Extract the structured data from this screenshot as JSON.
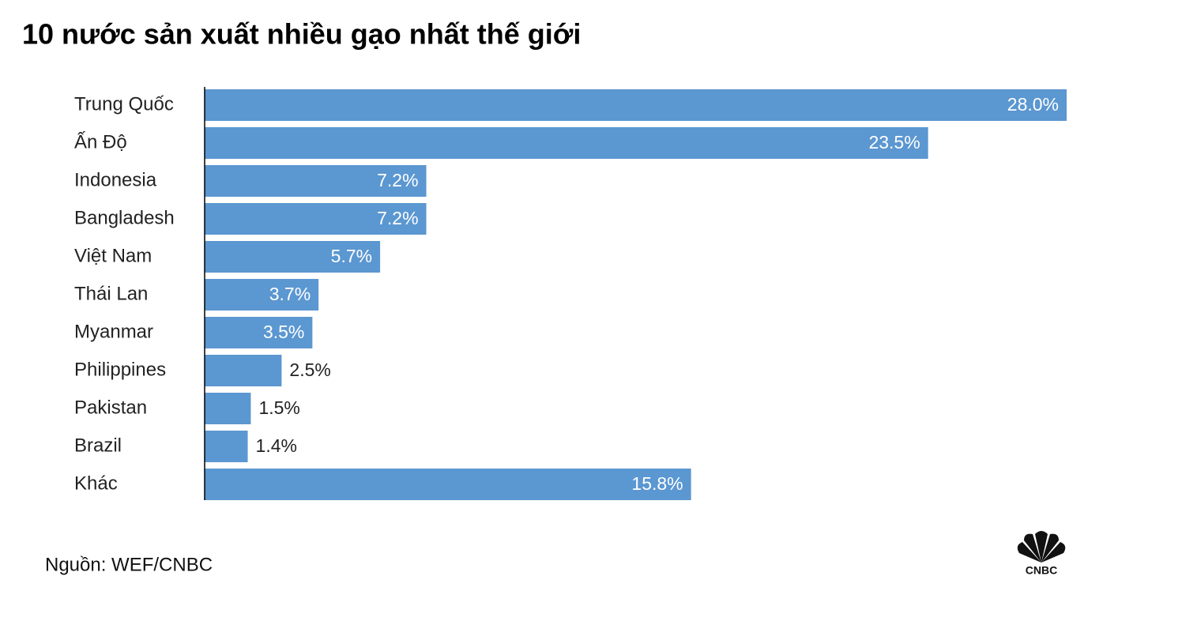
{
  "chart_data": {
    "type": "bar",
    "orientation": "horizontal",
    "title": "10 nước sản xuất nhiều gạo nhất thế giới",
    "categories": [
      "Trung Quốc",
      "Ấn Độ",
      "Indonesia",
      "Bangladesh",
      "Việt Nam",
      "Thái Lan",
      "Myanmar",
      "Philippines",
      "Pakistan",
      "Brazil",
      "Khác"
    ],
    "values": [
      28.0,
      23.5,
      7.2,
      7.2,
      5.7,
      3.7,
      3.5,
      2.5,
      1.5,
      1.4,
      15.8
    ],
    "value_labels": [
      "28.0%",
      "23.5%",
      "7.2%",
      "7.2%",
      "5.7%",
      "3.7%",
      "3.5%",
      "2.5%",
      "1.5%",
      "1.4%",
      "15.8%"
    ],
    "color": "#5b97d1",
    "source": "Nguồn: WEF/CNBC",
    "logo": "CNBC"
  }
}
